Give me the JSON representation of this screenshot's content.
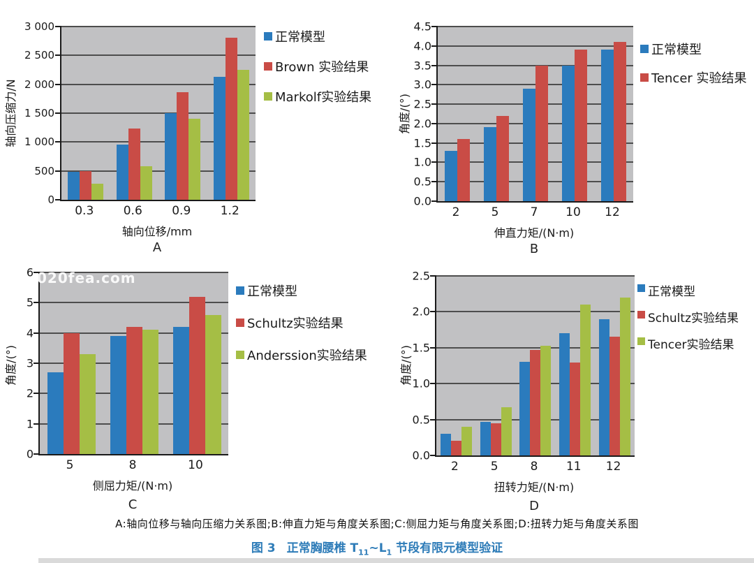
{
  "figure": {
    "panel_note": "A:轴向位移与轴向压缩力关系图;B:伸直力矩与角度关系图;C:侧屈力矩与角度关系图;D:扭转力矩与角度关系图",
    "caption": {
      "fig_label": "图 3",
      "title_pre": "正常胸腰椎 T",
      "sub_1": "11",
      "title_mid": "~L",
      "sub_2": "1",
      "title_post": " 节段有限元模型验证"
    },
    "watermark": "020fea.com"
  },
  "colors": {
    "series_blue": "#2b7bbd",
    "series_red": "#c94c46",
    "series_green": "#a5be45",
    "plot_background": "#c1c1c3",
    "gridline": "#4d4d4d",
    "axis": "#1a1a1a",
    "caption_blue": "#2e7cb8",
    "watermark_white": "#fcfcfc",
    "footer_bar_gray": "#dadada"
  },
  "chart_data": [
    {
      "type": "bar",
      "panel_label": "A",
      "xlabel": "轴向位移/mm",
      "ylabel": "轴向压缩力/N",
      "categories": [
        "0.3",
        "0.6",
        "0.9",
        "1.2"
      ],
      "series": [
        {
          "name": "正常模型",
          "color": "#2b7bbd",
          "values": [
            480,
            950,
            1500,
            2130
          ]
        },
        {
          "name": "Brown 实验结果",
          "color": "#c94c46",
          "values": [
            500,
            1230,
            1860,
            2810
          ]
        },
        {
          "name": "Markolf实验结果",
          "color": "#a5be45",
          "values": [
            280,
            580,
            1400,
            2250
          ]
        }
      ],
      "ylim": [
        0,
        3000
      ],
      "ystep": 500,
      "yticks": [
        "3 000",
        "2 500",
        "2 000",
        "1 500",
        "1 000",
        "500",
        "0"
      ],
      "grid": true,
      "legend_position": "right",
      "watermark": ""
    },
    {
      "type": "bar",
      "panel_label": "B",
      "xlabel": "伸直力矩/(N·m)",
      "ylabel": "角度/(°)",
      "categories": [
        "2",
        "5",
        "7",
        "10",
        "12"
      ],
      "series": [
        {
          "name": "正常模型",
          "color": "#2b7bbd",
          "values": [
            1.3,
            1.9,
            2.9,
            3.5,
            3.9
          ]
        },
        {
          "name": "Tencer 实验结果",
          "color": "#c94c46",
          "values": [
            1.6,
            2.2,
            3.5,
            3.9,
            4.1
          ]
        }
      ],
      "ylim": [
        0,
        4.5
      ],
      "ystep": 0.5,
      "yticks": [
        "4.5",
        "4.0",
        "3.5",
        "3.0",
        "2.5",
        "2.0",
        "1.5",
        "1.0",
        "0.5",
        "0.0"
      ],
      "grid": true,
      "legend_position": "right",
      "watermark": ""
    },
    {
      "type": "bar",
      "panel_label": "C",
      "xlabel": "侧屈力矩/(N·m)",
      "ylabel": "角度/(°)",
      "categories": [
        "5",
        "8",
        "10"
      ],
      "series": [
        {
          "name": "正常模型",
          "color": "#2b7bbd",
          "values": [
            2.7,
            3.9,
            4.2
          ]
        },
        {
          "name": "Schultz实验结果",
          "color": "#c94c46",
          "values": [
            4.0,
            4.2,
            5.2
          ]
        },
        {
          "name": "Anderssion实验结果",
          "color": "#a5be45",
          "values": [
            3.3,
            4.1,
            4.6
          ]
        }
      ],
      "ylim": [
        0,
        6
      ],
      "ystep": 1,
      "yticks": [
        "6",
        "5",
        "4",
        "3",
        "2",
        "1",
        "0"
      ],
      "grid": true,
      "legend_position": "right",
      "watermark": "020fea.com"
    },
    {
      "type": "bar",
      "panel_label": "D",
      "xlabel": "扭转力矩/(N·m)",
      "ylabel": "角度/(°)",
      "categories": [
        "2",
        "5",
        "8",
        "11",
        "12"
      ],
      "series": [
        {
          "name": "正常模型",
          "color": "#2b7bbd",
          "values": [
            0.3,
            0.47,
            1.3,
            1.7,
            1.9
          ]
        },
        {
          "name": "Schultz实验结果",
          "color": "#c94c46",
          "values": [
            0.2,
            0.45,
            1.47,
            1.29,
            1.65
          ]
        },
        {
          "name": "Tencer实验结果",
          "color": "#a5be45",
          "values": [
            0.4,
            0.67,
            1.53,
            2.1,
            2.2
          ]
        }
      ],
      "ylim": [
        0,
        2.5
      ],
      "ystep": 0.5,
      "yticks": [
        "2.5",
        "2.0",
        "1.5",
        "1.0",
        "0.5",
        "0.0"
      ],
      "grid": true,
      "legend_position": "right",
      "watermark": ""
    }
  ]
}
